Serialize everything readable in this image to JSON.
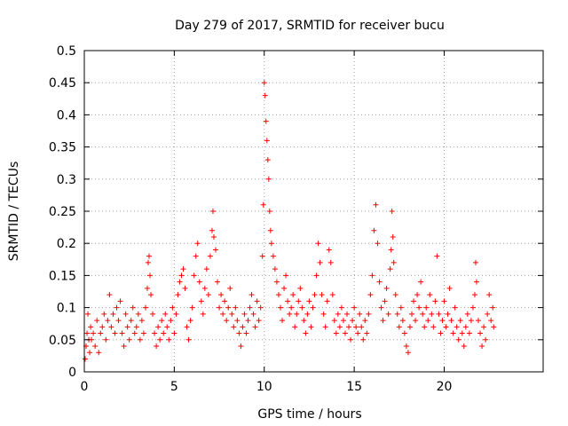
{
  "chart_data": {
    "type": "scatter",
    "title": "Day 279 of 2017, SRMTID for receiver bucu",
    "xlabel": "GPS time / hours",
    "ylabel": "SRMTID / TECUs",
    "xlim": [
      0,
      25.5
    ],
    "ylim": [
      0,
      0.5
    ],
    "x_ticks": [
      0,
      5,
      10,
      15,
      20
    ],
    "x_tick_labels": [
      "0",
      "5",
      "10",
      "15",
      "20"
    ],
    "y_ticks": [
      0,
      0.05,
      0.1,
      0.15,
      0.2,
      0.25,
      0.3,
      0.35,
      0.4,
      0.45,
      0.5
    ],
    "y_tick_labels": [
      "0",
      "0.05",
      "0.1",
      "0.15",
      "0.2",
      "0.25",
      "0.3",
      "0.35",
      "0.4",
      "0.45",
      "0.5"
    ],
    "grid": true,
    "marker": "+",
    "marker_color": "#ff0000",
    "series": [
      {
        "name": "SRMTID",
        "points": [
          [
            0.05,
            0.02
          ],
          [
            0.1,
            0.04
          ],
          [
            0.15,
            0.06
          ],
          [
            0.2,
            0.09
          ],
          [
            0.25,
            0.05
          ],
          [
            0.3,
            0.03
          ],
          [
            0.35,
            0.07
          ],
          [
            0.4,
            0.05
          ],
          [
            0.5,
            0.06
          ],
          [
            0.6,
            0.04
          ],
          [
            0.7,
            0.08
          ],
          [
            0.8,
            0.03
          ],
          [
            0.9,
            0.06
          ],
          [
            1.0,
            0.07
          ],
          [
            1.1,
            0.09
          ],
          [
            1.2,
            0.05
          ],
          [
            1.3,
            0.08
          ],
          [
            1.4,
            0.12
          ],
          [
            1.5,
            0.07
          ],
          [
            1.6,
            0.09
          ],
          [
            1.7,
            0.06
          ],
          [
            1.8,
            0.1
          ],
          [
            1.9,
            0.08
          ],
          [
            2.0,
            0.11
          ],
          [
            2.1,
            0.06
          ],
          [
            2.2,
            0.04
          ],
          [
            2.3,
            0.09
          ],
          [
            2.4,
            0.07
          ],
          [
            2.5,
            0.05
          ],
          [
            2.6,
            0.08
          ],
          [
            2.7,
            0.1
          ],
          [
            2.8,
            0.06
          ],
          [
            2.9,
            0.07
          ],
          [
            3.0,
            0.09
          ],
          [
            3.1,
            0.05
          ],
          [
            3.2,
            0.08
          ],
          [
            3.3,
            0.06
          ],
          [
            3.4,
            0.1
          ],
          [
            3.5,
            0.13
          ],
          [
            3.55,
            0.17
          ],
          [
            3.6,
            0.18
          ],
          [
            3.65,
            0.15
          ],
          [
            3.7,
            0.12
          ],
          [
            3.8,
            0.09
          ],
          [
            3.9,
            0.06
          ],
          [
            4.0,
            0.04
          ],
          [
            4.1,
            0.07
          ],
          [
            4.2,
            0.05
          ],
          [
            4.3,
            0.08
          ],
          [
            4.4,
            0.06
          ],
          [
            4.5,
            0.09
          ],
          [
            4.6,
            0.07
          ],
          [
            4.7,
            0.05
          ],
          [
            4.8,
            0.08
          ],
          [
            4.9,
            0.1
          ],
          [
            5.0,
            0.06
          ],
          [
            5.1,
            0.09
          ],
          [
            5.2,
            0.12
          ],
          [
            5.3,
            0.14
          ],
          [
            5.4,
            0.15
          ],
          [
            5.5,
            0.16
          ],
          [
            5.6,
            0.13
          ],
          [
            5.7,
            0.07
          ],
          [
            5.8,
            0.05
          ],
          [
            5.9,
            0.08
          ],
          [
            6.0,
            0.1
          ],
          [
            6.1,
            0.15
          ],
          [
            6.2,
            0.18
          ],
          [
            6.3,
            0.2
          ],
          [
            6.4,
            0.14
          ],
          [
            6.5,
            0.11
          ],
          [
            6.6,
            0.09
          ],
          [
            6.7,
            0.13
          ],
          [
            6.8,
            0.16
          ],
          [
            6.9,
            0.12
          ],
          [
            7.0,
            0.18
          ],
          [
            7.1,
            0.22
          ],
          [
            7.15,
            0.25
          ],
          [
            7.2,
            0.21
          ],
          [
            7.3,
            0.19
          ],
          [
            7.4,
            0.14
          ],
          [
            7.5,
            0.1
          ],
          [
            7.6,
            0.12
          ],
          [
            7.7,
            0.09
          ],
          [
            7.8,
            0.11
          ],
          [
            7.9,
            0.08
          ],
          [
            8.0,
            0.1
          ],
          [
            8.1,
            0.13
          ],
          [
            8.2,
            0.09
          ],
          [
            8.3,
            0.07
          ],
          [
            8.4,
            0.1
          ],
          [
            8.5,
            0.08
          ],
          [
            8.6,
            0.06
          ],
          [
            8.7,
            0.04
          ],
          [
            8.8,
            0.07
          ],
          [
            8.9,
            0.09
          ],
          [
            9.0,
            0.06
          ],
          [
            9.1,
            0.08
          ],
          [
            9.2,
            0.1
          ],
          [
            9.3,
            0.12
          ],
          [
            9.4,
            0.09
          ],
          [
            9.5,
            0.07
          ],
          [
            9.6,
            0.11
          ],
          [
            9.7,
            0.08
          ],
          [
            9.8,
            0.1
          ],
          [
            9.9,
            0.18
          ],
          [
            9.95,
            0.26
          ],
          [
            10.0,
            0.45
          ],
          [
            10.05,
            0.43
          ],
          [
            10.1,
            0.39
          ],
          [
            10.15,
            0.36
          ],
          [
            10.2,
            0.33
          ],
          [
            10.25,
            0.3
          ],
          [
            10.3,
            0.25
          ],
          [
            10.35,
            0.22
          ],
          [
            10.4,
            0.2
          ],
          [
            10.5,
            0.18
          ],
          [
            10.6,
            0.16
          ],
          [
            10.7,
            0.14
          ],
          [
            10.8,
            0.12
          ],
          [
            10.9,
            0.1
          ],
          [
            11.0,
            0.08
          ],
          [
            11.1,
            0.13
          ],
          [
            11.2,
            0.15
          ],
          [
            11.3,
            0.11
          ],
          [
            11.4,
            0.09
          ],
          [
            11.5,
            0.1
          ],
          [
            11.6,
            0.12
          ],
          [
            11.7,
            0.07
          ],
          [
            11.8,
            0.09
          ],
          [
            11.9,
            0.11
          ],
          [
            12.0,
            0.13
          ],
          [
            12.1,
            0.1
          ],
          [
            12.2,
            0.08
          ],
          [
            12.3,
            0.06
          ],
          [
            12.4,
            0.09
          ],
          [
            12.5,
            0.11
          ],
          [
            12.6,
            0.07
          ],
          [
            12.7,
            0.1
          ],
          [
            12.8,
            0.12
          ],
          [
            12.9,
            0.15
          ],
          [
            13.0,
            0.2
          ],
          [
            13.1,
            0.17
          ],
          [
            13.2,
            0.12
          ],
          [
            13.3,
            0.09
          ],
          [
            13.4,
            0.07
          ],
          [
            13.5,
            0.11
          ],
          [
            13.6,
            0.19
          ],
          [
            13.7,
            0.17
          ],
          [
            13.8,
            0.12
          ],
          [
            13.9,
            0.08
          ],
          [
            14.0,
            0.06
          ],
          [
            14.1,
            0.09
          ],
          [
            14.2,
            0.07
          ],
          [
            14.3,
            0.1
          ],
          [
            14.4,
            0.08
          ],
          [
            14.5,
            0.06
          ],
          [
            14.6,
            0.09
          ],
          [
            14.7,
            0.07
          ],
          [
            14.8,
            0.05
          ],
          [
            14.9,
            0.08
          ],
          [
            15.0,
            0.1
          ],
          [
            15.1,
            0.07
          ],
          [
            15.2,
            0.06
          ],
          [
            15.3,
            0.09
          ],
          [
            15.4,
            0.07
          ],
          [
            15.5,
            0.05
          ],
          [
            15.6,
            0.08
          ],
          [
            15.7,
            0.06
          ],
          [
            15.8,
            0.09
          ],
          [
            15.9,
            0.12
          ],
          [
            16.0,
            0.15
          ],
          [
            16.1,
            0.22
          ],
          [
            16.2,
            0.26
          ],
          [
            16.3,
            0.2
          ],
          [
            16.4,
            0.14
          ],
          [
            16.5,
            0.1
          ],
          [
            16.6,
            0.08
          ],
          [
            16.7,
            0.11
          ],
          [
            16.8,
            0.13
          ],
          [
            16.9,
            0.09
          ],
          [
            17.0,
            0.16
          ],
          [
            17.05,
            0.19
          ],
          [
            17.1,
            0.25
          ],
          [
            17.15,
            0.21
          ],
          [
            17.2,
            0.17
          ],
          [
            17.3,
            0.12
          ],
          [
            17.4,
            0.09
          ],
          [
            17.5,
            0.07
          ],
          [
            17.6,
            0.1
          ],
          [
            17.7,
            0.08
          ],
          [
            17.8,
            0.06
          ],
          [
            17.9,
            0.04
          ],
          [
            18.0,
            0.03
          ],
          [
            18.1,
            0.07
          ],
          [
            18.2,
            0.09
          ],
          [
            18.3,
            0.11
          ],
          [
            18.4,
            0.08
          ],
          [
            18.5,
            0.12
          ],
          [
            18.6,
            0.1
          ],
          [
            18.7,
            0.14
          ],
          [
            18.8,
            0.09
          ],
          [
            18.9,
            0.07
          ],
          [
            19.0,
            0.1
          ],
          [
            19.1,
            0.08
          ],
          [
            19.2,
            0.12
          ],
          [
            19.3,
            0.09
          ],
          [
            19.4,
            0.07
          ],
          [
            19.5,
            0.11
          ],
          [
            19.6,
            0.18
          ],
          [
            19.7,
            0.09
          ],
          [
            19.8,
            0.06
          ],
          [
            19.9,
            0.08
          ],
          [
            20.0,
            0.11
          ],
          [
            20.1,
            0.07
          ],
          [
            20.2,
            0.09
          ],
          [
            20.3,
            0.13
          ],
          [
            20.4,
            0.08
          ],
          [
            20.5,
            0.06
          ],
          [
            20.6,
            0.1
          ],
          [
            20.7,
            0.07
          ],
          [
            20.8,
            0.05
          ],
          [
            20.9,
            0.08
          ],
          [
            21.0,
            0.06
          ],
          [
            21.1,
            0.04
          ],
          [
            21.2,
            0.07
          ],
          [
            21.3,
            0.09
          ],
          [
            21.4,
            0.06
          ],
          [
            21.5,
            0.08
          ],
          [
            21.6,
            0.1
          ],
          [
            21.7,
            0.12
          ],
          [
            21.75,
            0.17
          ],
          [
            21.8,
            0.14
          ],
          [
            21.9,
            0.08
          ],
          [
            22.0,
            0.06
          ],
          [
            22.1,
            0.04
          ],
          [
            22.2,
            0.07
          ],
          [
            22.3,
            0.05
          ],
          [
            22.4,
            0.09
          ],
          [
            22.5,
            0.12
          ],
          [
            22.6,
            0.08
          ],
          [
            22.7,
            0.1
          ],
          [
            22.75,
            0.07
          ]
        ]
      }
    ]
  }
}
